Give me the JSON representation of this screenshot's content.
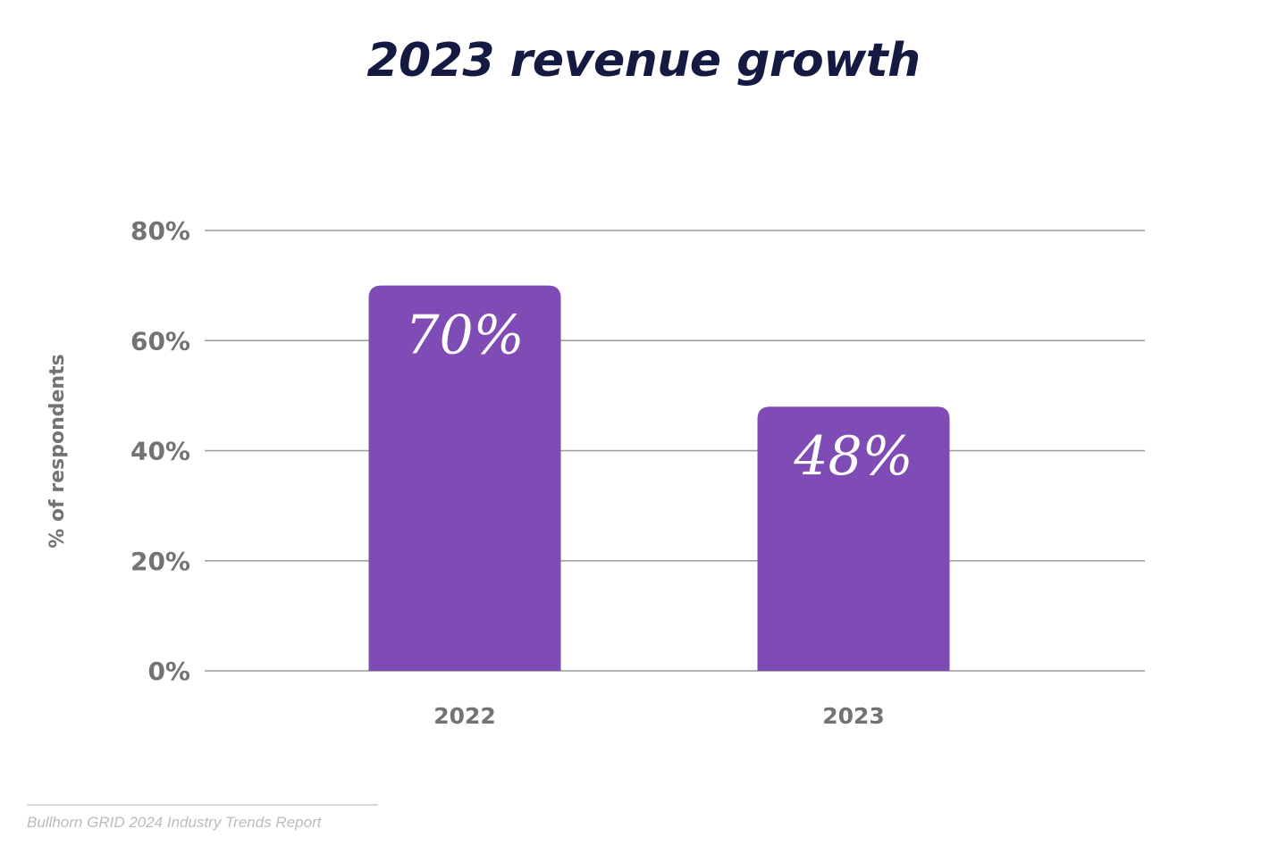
{
  "chart_data": {
    "type": "bar",
    "title": "2023 revenue growth",
    "categories": [
      "2022",
      "2023"
    ],
    "values": [
      70,
      48
    ],
    "value_labels": [
      "70%",
      "48%"
    ],
    "xlabel": "",
    "ylabel": "% of respondents",
    "ylim": [
      0,
      80
    ],
    "yticks": [
      0,
      20,
      40,
      60,
      80
    ],
    "ytick_labels": [
      "0%",
      "20%",
      "40%",
      "60%",
      "80%"
    ],
    "grid": true,
    "legend": "none",
    "colors": {
      "bar": "#7f4bb5",
      "grid": "#9a9a9a",
      "tick_text": "#737373",
      "title": "#141a42",
      "value_text": "#ffffff"
    }
  },
  "footer": {
    "source": "Bullhorn GRID 2024 Industry Trends Report"
  }
}
